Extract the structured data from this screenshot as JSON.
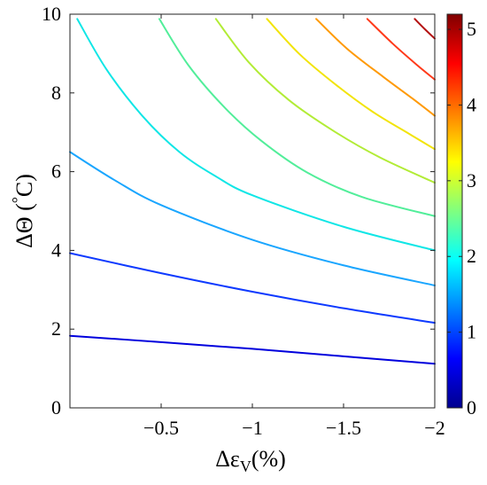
{
  "chart_data": {
    "type": "contour",
    "xlabel": "Δε",
    "xlabel_sub": "V",
    "xlabel_unit": "(%)",
    "ylabel_main": "ΔΘ (",
    "ylabel_degree": "°",
    "ylabel_unit": "C)",
    "xlim": [
      0,
      -2
    ],
    "ylim": [
      0,
      10
    ],
    "x_ticks": [
      -0.5,
      -1,
      -1.5,
      -2
    ],
    "x_tick_labels": [
      "−0.5",
      "−1",
      "−1.5",
      "−2"
    ],
    "y_ticks": [
      0,
      2,
      4,
      6,
      8,
      10
    ],
    "y_tick_labels": [
      "0",
      "2",
      "4",
      "6",
      "8",
      "10"
    ],
    "colorbar": {
      "range": [
        0,
        5.2
      ],
      "ticks": [
        0,
        1,
        2,
        3,
        4,
        5
      ],
      "tick_labels": [
        "0",
        "1",
        "2",
        "3",
        "4",
        "5"
      ],
      "colormap": "jet"
    },
    "grid": false,
    "contours": [
      {
        "level": 0.5,
        "color": "#0000dd",
        "points": [
          [
            0,
            1.83
          ],
          [
            -0.5,
            1.67
          ],
          [
            -1,
            1.5
          ],
          [
            -1.5,
            1.31
          ],
          [
            -2,
            1.12
          ]
        ]
      },
      {
        "level": 1.0,
        "color": "#0e3aff",
        "points": [
          [
            0,
            3.93
          ],
          [
            -0.5,
            3.42
          ],
          [
            -1,
            2.95
          ],
          [
            -1.5,
            2.53
          ],
          [
            -2,
            2.16
          ]
        ]
      },
      {
        "level": 1.5,
        "color": "#1aa6ff",
        "points": [
          [
            0,
            6.5
          ],
          [
            -0.25,
            5.77
          ],
          [
            -0.5,
            5.15
          ],
          [
            -1,
            4.27
          ],
          [
            -1.5,
            3.62
          ],
          [
            -2,
            3.11
          ]
        ]
      },
      {
        "level": 2.0,
        "color": "#10e6e6",
        "points": [
          [
            -0.04,
            9.88
          ],
          [
            -0.2,
            8.6
          ],
          [
            -0.4,
            7.4
          ],
          [
            -0.6,
            6.5
          ],
          [
            -0.8,
            5.88
          ],
          [
            -1,
            5.4
          ],
          [
            -1.5,
            4.6
          ],
          [
            -2,
            4.0
          ]
        ]
      },
      {
        "level": 2.5,
        "color": "#52ee9a",
        "points": [
          [
            -0.49,
            9.88
          ],
          [
            -0.65,
            8.7
          ],
          [
            -0.85,
            7.62
          ],
          [
            -1.05,
            6.78
          ],
          [
            -1.3,
            5.98
          ],
          [
            -1.6,
            5.36
          ],
          [
            -2,
            4.87
          ]
        ]
      },
      {
        "level": 3.0,
        "color": "#b2ec36",
        "points": [
          [
            -0.8,
            9.88
          ],
          [
            -0.98,
            8.78
          ],
          [
            -1.2,
            7.82
          ],
          [
            -1.45,
            7.02
          ],
          [
            -1.7,
            6.36
          ],
          [
            -2,
            5.72
          ]
        ]
      },
      {
        "level": 3.5,
        "color": "#f2e40a",
        "points": [
          [
            -1.08,
            9.88
          ],
          [
            -1.26,
            8.98
          ],
          [
            -1.46,
            8.2
          ],
          [
            -1.66,
            7.52
          ],
          [
            -1.86,
            6.96
          ],
          [
            -2,
            6.57
          ]
        ]
      },
      {
        "level": 4.0,
        "color": "#ff9a06",
        "points": [
          [
            -1.35,
            9.88
          ],
          [
            -1.52,
            9.12
          ],
          [
            -1.72,
            8.4
          ],
          [
            -1.88,
            7.85
          ],
          [
            -2,
            7.42
          ]
        ]
      },
      {
        "level": 4.5,
        "color": "#ff3a1a",
        "points": [
          [
            -1.63,
            9.88
          ],
          [
            -1.77,
            9.25
          ],
          [
            -1.9,
            8.72
          ],
          [
            -2,
            8.34
          ]
        ]
      },
      {
        "level": 5.0,
        "color": "#b41212",
        "points": [
          [
            -1.89,
            9.88
          ],
          [
            -1.95,
            9.6
          ],
          [
            -2,
            9.38
          ]
        ]
      }
    ]
  }
}
